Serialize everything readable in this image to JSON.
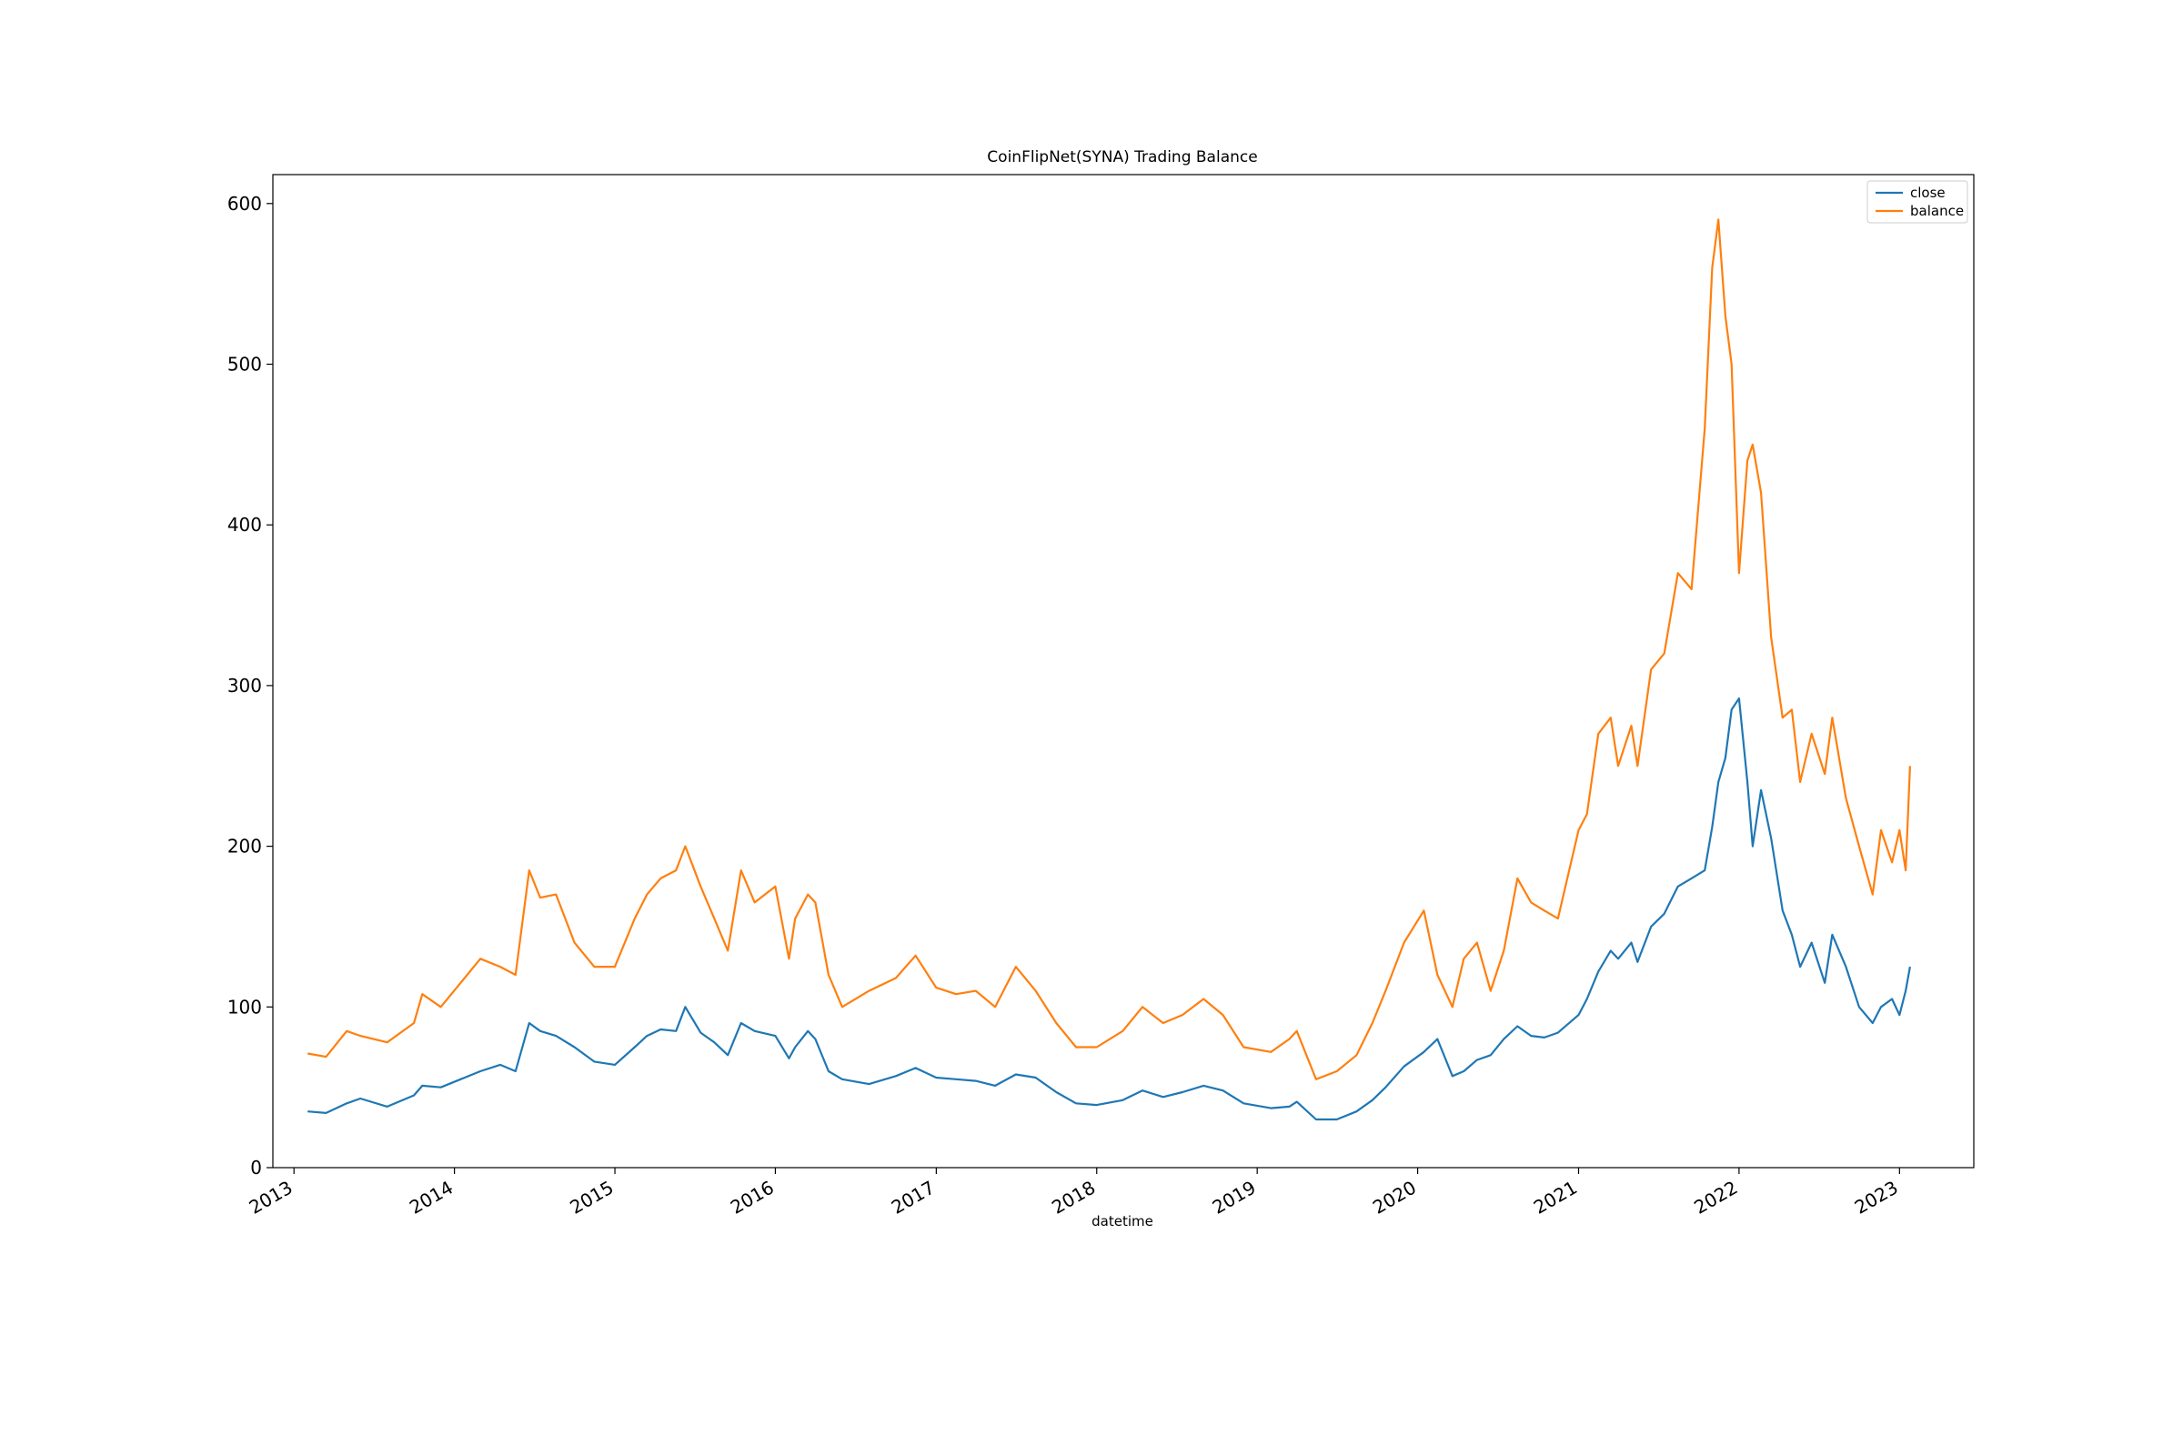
{
  "chart_data": {
    "type": "line",
    "title": "CoinFlipNet(SYNA) Trading Balance",
    "xlabel": "datetime",
    "ylabel": "",
    "ylim": [
      0,
      618
    ],
    "xlim": [
      "2012-11-14",
      "2023-06-19"
    ],
    "yticks": [
      0,
      100,
      200,
      300,
      400,
      500,
      600
    ],
    "xticks": [
      "2013",
      "2014",
      "2015",
      "2016",
      "2017",
      "2018",
      "2019",
      "2020",
      "2021",
      "2022",
      "2023"
    ],
    "legend_position": "top-right",
    "grid": false,
    "series": [
      {
        "name": "close",
        "color": "#1f77b4",
        "x": [
          "2013-02-01",
          "2013-03-15",
          "2013-05-01",
          "2013-06-01",
          "2013-08-01",
          "2013-10-01",
          "2013-10-20",
          "2013-12-01",
          "2014-01-15",
          "2014-03-01",
          "2014-04-15",
          "2014-05-20",
          "2014-06-20",
          "2014-07-15",
          "2014-08-20",
          "2014-10-01",
          "2014-11-15",
          "2015-01-01",
          "2015-02-15",
          "2015-03-15",
          "2015-04-15",
          "2015-05-20",
          "2015-06-10",
          "2015-07-15",
          "2015-08-15",
          "2015-09-15",
          "2015-10-15",
          "2015-11-15",
          "2016-01-01",
          "2016-02-01",
          "2016-02-15",
          "2016-03-15",
          "2016-04-01",
          "2016-05-01",
          "2016-06-01",
          "2016-08-01",
          "2016-10-01",
          "2016-11-15",
          "2017-01-01",
          "2017-02-15",
          "2017-04-01",
          "2017-05-15",
          "2017-07-01",
          "2017-08-15",
          "2017-10-01",
          "2017-11-15",
          "2018-01-01",
          "2018-03-01",
          "2018-04-15",
          "2018-06-01",
          "2018-07-15",
          "2018-09-01",
          "2018-10-15",
          "2018-12-01",
          "2019-02-01",
          "2019-03-15",
          "2019-04-01",
          "2019-05-15",
          "2019-07-01",
          "2019-08-15",
          "2019-09-20",
          "2019-10-20",
          "2019-12-01",
          "2020-01-15",
          "2020-02-15",
          "2020-03-20",
          "2020-04-15",
          "2020-05-15",
          "2020-06-15",
          "2020-07-15",
          "2020-08-15",
          "2020-09-15",
          "2020-10-15",
          "2020-11-15",
          "2021-01-01",
          "2021-01-20",
          "2021-02-15",
          "2021-03-15",
          "2021-04-01",
          "2021-05-01",
          "2021-05-15",
          "2021-06-15",
          "2021-07-15",
          "2021-08-15",
          "2021-09-15",
          "2021-10-15",
          "2021-11-01",
          "2021-11-15",
          "2021-12-01",
          "2021-12-15",
          "2022-01-01",
          "2022-01-20",
          "2022-02-01",
          "2022-02-20",
          "2022-03-15",
          "2022-04-10",
          "2022-05-01",
          "2022-05-20",
          "2022-06-15",
          "2022-07-15",
          "2022-08-01",
          "2022-09-01",
          "2022-10-01",
          "2022-11-01",
          "2022-11-20",
          "2022-12-15",
          "2023-01-01",
          "2023-01-15",
          "2023-01-25"
        ],
        "values": [
          35,
          34,
          40,
          43,
          38,
          45,
          51,
          50,
          55,
          60,
          64,
          60,
          90,
          85,
          82,
          75,
          66,
          64,
          75,
          82,
          86,
          85,
          100,
          84,
          78,
          70,
          90,
          85,
          82,
          68,
          75,
          85,
          80,
          60,
          55,
          52,
          57,
          62,
          56,
          55,
          54,
          51,
          58,
          56,
          47,
          40,
          39,
          42,
          48,
          44,
          47,
          51,
          48,
          40,
          37,
          38,
          41,
          30,
          30,
          35,
          42,
          50,
          63,
          72,
          80,
          57,
          60,
          67,
          70,
          80,
          88,
          82,
          81,
          84,
          95,
          105,
          122,
          135,
          130,
          140,
          128,
          150,
          158,
          175,
          180,
          185,
          212,
          240,
          255,
          285,
          292,
          240,
          200,
          235,
          205,
          160,
          145,
          125,
          140,
          115,
          145,
          125,
          100,
          90,
          100,
          105,
          95,
          110,
          125
        ]
      },
      {
        "name": "balance",
        "color": "#ff7f0e",
        "x": [
          "2013-02-01",
          "2013-03-15",
          "2013-05-01",
          "2013-06-01",
          "2013-08-01",
          "2013-10-01",
          "2013-10-20",
          "2013-12-01",
          "2014-01-15",
          "2014-03-01",
          "2014-04-15",
          "2014-05-20",
          "2014-06-20",
          "2014-07-15",
          "2014-08-20",
          "2014-10-01",
          "2014-11-15",
          "2015-01-01",
          "2015-02-15",
          "2015-03-15",
          "2015-04-15",
          "2015-05-20",
          "2015-06-10",
          "2015-07-15",
          "2015-08-15",
          "2015-09-15",
          "2015-10-15",
          "2015-11-15",
          "2016-01-01",
          "2016-02-01",
          "2016-02-15",
          "2016-03-15",
          "2016-04-01",
          "2016-05-01",
          "2016-06-01",
          "2016-08-01",
          "2016-10-01",
          "2016-11-15",
          "2017-01-01",
          "2017-02-15",
          "2017-04-01",
          "2017-05-15",
          "2017-07-01",
          "2017-08-15",
          "2017-10-01",
          "2017-11-15",
          "2018-01-01",
          "2018-03-01",
          "2018-04-15",
          "2018-06-01",
          "2018-07-15",
          "2018-09-01",
          "2018-10-15",
          "2018-12-01",
          "2019-02-01",
          "2019-03-15",
          "2019-04-01",
          "2019-05-15",
          "2019-07-01",
          "2019-08-15",
          "2019-09-20",
          "2019-10-20",
          "2019-12-01",
          "2020-01-15",
          "2020-02-15",
          "2020-03-20",
          "2020-04-15",
          "2020-05-15",
          "2020-06-15",
          "2020-07-15",
          "2020-08-15",
          "2020-09-15",
          "2020-10-15",
          "2020-11-15",
          "2021-01-01",
          "2021-01-20",
          "2021-02-15",
          "2021-03-15",
          "2021-04-01",
          "2021-05-01",
          "2021-05-15",
          "2021-06-15",
          "2021-07-15",
          "2021-08-15",
          "2021-09-15",
          "2021-10-15",
          "2021-11-01",
          "2021-11-15",
          "2021-12-01",
          "2021-12-15",
          "2022-01-01",
          "2022-01-20",
          "2022-02-01",
          "2022-02-20",
          "2022-03-15",
          "2022-04-10",
          "2022-05-01",
          "2022-05-20",
          "2022-06-15",
          "2022-07-15",
          "2022-08-01",
          "2022-09-01",
          "2022-10-01",
          "2022-11-01",
          "2022-11-20",
          "2022-12-15",
          "2023-01-01",
          "2023-01-15",
          "2023-01-25"
        ],
        "values": [
          71,
          69,
          85,
          82,
          78,
          90,
          108,
          100,
          115,
          130,
          125,
          120,
          185,
          168,
          170,
          140,
          125,
          125,
          155,
          170,
          180,
          185,
          200,
          175,
          155,
          135,
          185,
          165,
          175,
          130,
          155,
          170,
          165,
          120,
          100,
          110,
          118,
          132,
          112,
          108,
          110,
          100,
          125,
          110,
          90,
          75,
          75,
          85,
          100,
          90,
          95,
          105,
          95,
          75,
          72,
          80,
          85,
          55,
          60,
          70,
          90,
          110,
          140,
          160,
          120,
          100,
          130,
          140,
          110,
          135,
          180,
          165,
          160,
          155,
          210,
          220,
          270,
          280,
          250,
          275,
          250,
          310,
          320,
          370,
          360,
          460,
          560,
          590,
          530,
          500,
          370,
          440,
          450,
          420,
          330,
          280,
          285,
          240,
          270,
          245,
          280,
          230,
          200,
          170,
          210,
          190,
          210,
          185,
          250
        ]
      }
    ]
  }
}
